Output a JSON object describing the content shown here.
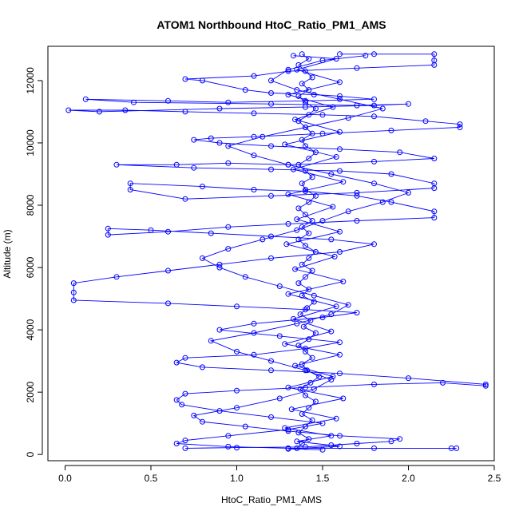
{
  "chart_data": {
    "type": "scatter",
    "title": "ATOM1 Northbound HtoC_Ratio_PM1_AMS",
    "xlabel": "HtoC_Ratio_PM1_AMS",
    "ylabel": "Altitude (m)",
    "xlim": [
      -0.1,
      2.5
    ],
    "ylim": [
      -200,
      13100
    ],
    "xticks": [
      0.0,
      0.5,
      1.0,
      1.5,
      2.0,
      2.5
    ],
    "xtick_labels": [
      "0.0",
      "0.5",
      "1.0",
      "1.5",
      "2.0",
      "2.5"
    ],
    "yticks": [
      0,
      2000,
      4000,
      6000,
      8000,
      10000,
      12000
    ],
    "ytick_labels": [
      "0",
      "2000",
      "4000",
      "6000",
      "8000",
      "10000",
      "12000"
    ],
    "grid": false,
    "marker": "open-circle",
    "connected": true,
    "colors": {
      "series": "#0000ff",
      "axis": "#000000",
      "background": "#ffffff"
    },
    "series": [
      {
        "points": [
          [
            1.35,
            200
          ],
          [
            1.38,
            350
          ],
          [
            1.42,
            500
          ],
          [
            1.36,
            700
          ],
          [
            1.4,
            900
          ],
          [
            1.44,
            1100
          ],
          [
            1.38,
            1300
          ],
          [
            1.42,
            1500
          ],
          [
            1.46,
            1700
          ],
          [
            1.4,
            1900
          ],
          [
            1.37,
            2100
          ],
          [
            1.43,
            2300
          ],
          [
            1.48,
            2500
          ],
          [
            1.41,
            2700
          ],
          [
            1.38,
            2900
          ],
          [
            1.44,
            3100
          ],
          [
            1.4,
            3300
          ],
          [
            1.36,
            3500
          ],
          [
            1.42,
            3700
          ],
          [
            1.46,
            3900
          ],
          [
            1.39,
            4100
          ],
          [
            1.43,
            4300
          ],
          [
            1.37,
            4500
          ],
          [
            1.41,
            4700
          ],
          [
            1.45,
            4900
          ],
          [
            1.38,
            5100
          ],
          [
            1.42,
            5300
          ],
          [
            1.36,
            5500
          ],
          [
            1.4,
            5700
          ],
          [
            1.44,
            5900
          ],
          [
            1.38,
            6100
          ],
          [
            1.42,
            6300
          ],
          [
            1.46,
            6500
          ],
          [
            1.4,
            6700
          ],
          [
            1.36,
            6900
          ],
          [
            1.42,
            7100
          ],
          [
            1.38,
            7300
          ],
          [
            1.44,
            7500
          ],
          [
            1.4,
            7700
          ],
          [
            1.36,
            7900
          ],
          [
            1.42,
            8100
          ],
          [
            1.46,
            8300
          ],
          [
            1.4,
            8500
          ],
          [
            1.38,
            8700
          ],
          [
            1.44,
            8900
          ],
          [
            1.4,
            9100
          ],
          [
            1.36,
            9300
          ],
          [
            1.42,
            9500
          ],
          [
            1.46,
            9700
          ],
          [
            1.4,
            9900
          ],
          [
            1.38,
            10100
          ],
          [
            1.44,
            10300
          ],
          [
            1.4,
            10500
          ],
          [
            1.36,
            10700
          ],
          [
            1.42,
            10900
          ],
          [
            1.46,
            11100
          ],
          [
            1.4,
            11300
          ],
          [
            1.36,
            11500
          ],
          [
            1.42,
            11700
          ],
          [
            1.38,
            11900
          ],
          [
            1.44,
            12100
          ],
          [
            1.4,
            12300
          ],
          [
            1.36,
            12500
          ],
          [
            1.42,
            12700
          ],
          [
            1.38,
            12850
          ]
        ]
      },
      {
        "points": [
          [
            1.6,
            12850
          ],
          [
            1.8,
            12850
          ],
          [
            2.15,
            12850
          ],
          [
            2.15,
            12650
          ],
          [
            2.15,
            12500
          ],
          [
            1.7,
            12400
          ],
          [
            1.3,
            12300
          ],
          [
            1.1,
            12150
          ],
          [
            0.7,
            12050
          ],
          [
            0.8,
            12000
          ],
          [
            1.05,
            11700
          ],
          [
            1.2,
            11600
          ],
          [
            1.45,
            11550
          ],
          [
            1.6,
            11500
          ],
          [
            1.8,
            11400
          ],
          [
            1.4,
            11350
          ],
          [
            0.95,
            11300
          ],
          [
            0.6,
            11350
          ],
          [
            0.12,
            11400
          ],
          [
            0.4,
            11300
          ],
          [
            1.2,
            11250
          ],
          [
            1.7,
            11200
          ],
          [
            2.0,
            11250
          ],
          [
            1.8,
            11200
          ],
          [
            1.4,
            11150
          ],
          [
            0.9,
            11100
          ],
          [
            0.2,
            11000
          ],
          [
            0.02,
            11050
          ],
          [
            0.35,
            11050
          ],
          [
            0.7,
            11000
          ],
          [
            1.1,
            10950
          ],
          [
            1.5,
            10900
          ],
          [
            1.8,
            10850
          ],
          [
            2.1,
            10700
          ],
          [
            2.3,
            10600
          ],
          [
            2.3,
            10500
          ],
          [
            1.9,
            10400
          ],
          [
            1.5,
            10300
          ],
          [
            1.1,
            10200
          ],
          [
            0.85,
            10150
          ],
          [
            0.75,
            10100
          ],
          [
            0.9,
            10000
          ],
          [
            1.2,
            9900
          ],
          [
            1.6,
            9800
          ],
          [
            1.95,
            9700
          ],
          [
            2.15,
            9500
          ],
          [
            1.8,
            9400
          ],
          [
            1.3,
            9300
          ],
          [
            0.95,
            9350
          ],
          [
            0.65,
            9300
          ],
          [
            0.3,
            9300
          ],
          [
            0.75,
            9200
          ],
          [
            1.2,
            9150
          ],
          [
            1.6,
            9100
          ],
          [
            1.9,
            9000
          ],
          [
            2.15,
            8700
          ],
          [
            2.15,
            8550
          ],
          [
            1.7,
            8400
          ],
          [
            1.2,
            8300
          ],
          [
            0.7,
            8200
          ],
          [
            0.38,
            8500
          ],
          [
            0.38,
            8700
          ],
          [
            0.8,
            8600
          ],
          [
            1.1,
            8500
          ],
          [
            1.4,
            8450
          ],
          [
            1.7,
            8300
          ],
          [
            1.9,
            8100
          ],
          [
            2.15,
            7800
          ],
          [
            2.15,
            7600
          ],
          [
            1.7,
            7500
          ],
          [
            1.3,
            7400
          ],
          [
            0.95,
            7300
          ],
          [
            0.6,
            7150
          ],
          [
            0.25,
            7050
          ],
          [
            0.25,
            7250
          ],
          [
            0.5,
            7200
          ],
          [
            0.85,
            7100
          ],
          [
            1.2,
            7000
          ],
          [
            1.55,
            6900
          ],
          [
            1.8,
            6750
          ],
          [
            1.6,
            6500
          ],
          [
            1.2,
            6300
          ],
          [
            0.9,
            6100
          ],
          [
            0.6,
            5900
          ],
          [
            0.3,
            5700
          ],
          [
            0.05,
            5500
          ],
          [
            0.05,
            5200
          ],
          [
            0.05,
            4950
          ],
          [
            0.6,
            4850
          ],
          [
            1.0,
            4750
          ],
          [
            1.4,
            4650
          ],
          [
            1.7,
            4550
          ],
          [
            1.5,
            4400
          ],
          [
            1.1,
            4200
          ],
          [
            0.9,
            4000
          ],
          [
            1.25,
            3800
          ],
          [
            1.6,
            3600
          ],
          [
            1.4,
            3400
          ],
          [
            1.1,
            3200
          ],
          [
            0.7,
            3100
          ],
          [
            0.65,
            2950
          ],
          [
            0.8,
            2800
          ],
          [
            1.2,
            2700
          ],
          [
            1.6,
            2600
          ],
          [
            2.0,
            2450
          ],
          [
            2.45,
            2250
          ],
          [
            2.45,
            2200
          ],
          [
            2.2,
            2300
          ],
          [
            1.8,
            2250
          ],
          [
            1.4,
            2150
          ],
          [
            1.0,
            2050
          ],
          [
            0.7,
            1950
          ],
          [
            0.65,
            1750
          ],
          [
            0.68,
            1600
          ],
          [
            0.9,
            1400
          ],
          [
            1.2,
            1200
          ],
          [
            1.5,
            1000
          ],
          [
            1.3,
            800
          ],
          [
            0.95,
            600
          ],
          [
            0.7,
            450
          ],
          [
            0.65,
            350
          ],
          [
            0.95,
            250
          ],
          [
            1.3,
            200
          ],
          [
            1.8,
            200
          ],
          [
            2.25,
            200
          ],
          [
            2.28,
            200
          ]
        ]
      },
      {
        "points": [
          [
            0.7,
            200
          ],
          [
            1.0,
            220
          ],
          [
            1.4,
            240
          ],
          [
            1.55,
            300
          ],
          [
            1.7,
            350
          ],
          [
            1.9,
            420
          ],
          [
            1.95,
            500
          ],
          [
            1.6,
            600
          ],
          [
            1.3,
            750
          ],
          [
            1.05,
            900
          ],
          [
            0.8,
            1050
          ],
          [
            0.75,
            1250
          ],
          [
            1.0,
            1500
          ],
          [
            1.25,
            1800
          ],
          [
            1.45,
            2100
          ],
          [
            1.55,
            2400
          ],
          [
            1.4,
            2700
          ],
          [
            1.2,
            3000
          ],
          [
            1.0,
            3300
          ],
          [
            0.85,
            3650
          ],
          [
            1.1,
            3900
          ],
          [
            1.35,
            4200
          ],
          [
            1.55,
            4500
          ],
          [
            1.65,
            4800
          ],
          [
            1.45,
            5100
          ],
          [
            1.25,
            5400
          ],
          [
            1.05,
            5700
          ],
          [
            0.9,
            6000
          ],
          [
            0.8,
            6300
          ],
          [
            0.95,
            6600
          ],
          [
            1.15,
            6900
          ],
          [
            1.35,
            7200
          ],
          [
            1.5,
            7500
          ],
          [
            1.65,
            7800
          ],
          [
            1.85,
            8100
          ],
          [
            2.0,
            8400
          ],
          [
            1.8,
            8700
          ],
          [
            1.55,
            9000
          ],
          [
            1.3,
            9300
          ],
          [
            1.1,
            9600
          ],
          [
            0.95,
            9900
          ],
          [
            1.15,
            10200
          ],
          [
            1.4,
            10500
          ],
          [
            1.65,
            10800
          ],
          [
            1.85,
            11100
          ],
          [
            1.6,
            11400
          ],
          [
            1.35,
            11700
          ],
          [
            1.2,
            12000
          ],
          [
            1.3,
            12350
          ],
          [
            1.5,
            12650
          ],
          [
            1.75,
            12800
          ]
        ]
      },
      {
        "points": [
          [
            1.5,
            150
          ],
          [
            1.3,
            180
          ],
          [
            1.6,
            260
          ],
          [
            1.35,
            420
          ],
          [
            1.55,
            600
          ],
          [
            1.28,
            850
          ],
          [
            1.58,
            1150
          ],
          [
            1.32,
            1450
          ],
          [
            1.62,
            1800
          ],
          [
            1.3,
            2150
          ],
          [
            1.56,
            2500
          ],
          [
            1.34,
            2850
          ],
          [
            1.6,
            3200
          ],
          [
            1.28,
            3550
          ],
          [
            1.55,
            3950
          ],
          [
            1.33,
            4350
          ],
          [
            1.58,
            4750
          ],
          [
            1.3,
            5150
          ],
          [
            1.62,
            5550
          ],
          [
            1.34,
            5950
          ],
          [
            1.57,
            6350
          ],
          [
            1.29,
            6750
          ],
          [
            1.6,
            7150
          ],
          [
            1.35,
            7550
          ],
          [
            1.56,
            7950
          ],
          [
            1.3,
            8350
          ],
          [
            1.62,
            8750
          ],
          [
            1.33,
            9150
          ],
          [
            1.58,
            9550
          ],
          [
            1.28,
            9950
          ],
          [
            1.6,
            10350
          ],
          [
            1.34,
            10750
          ],
          [
            1.56,
            11150
          ],
          [
            1.3,
            11550
          ],
          [
            1.6,
            11950
          ],
          [
            1.35,
            12350
          ],
          [
            1.58,
            12700
          ],
          [
            1.33,
            12800
          ]
        ]
      }
    ]
  }
}
